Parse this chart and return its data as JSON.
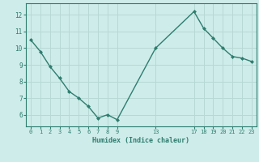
{
  "x": [
    0,
    1,
    2,
    3,
    4,
    5,
    6,
    7,
    8,
    9,
    13,
    17,
    18,
    19,
    20,
    21,
    22,
    23
  ],
  "y": [
    10.5,
    9.8,
    8.9,
    8.2,
    7.4,
    7.0,
    6.5,
    5.8,
    6.0,
    5.7,
    10.0,
    12.2,
    11.2,
    10.6,
    10.0,
    9.5,
    9.4,
    9.2
  ],
  "line_color": "#2e7d6e",
  "marker_color": "#2e7d6e",
  "bg_color": "#ceecea",
  "grid_color": "#b8d8d5",
  "axis_color": "#2e7d6e",
  "xlabel": "Humidex (Indice chaleur)",
  "xticks": [
    0,
    1,
    2,
    3,
    4,
    5,
    6,
    7,
    8,
    9,
    13,
    17,
    18,
    19,
    20,
    21,
    22,
    23
  ],
  "yticks": [
    6,
    7,
    8,
    9,
    10,
    11,
    12
  ],
  "ylim": [
    5.3,
    12.7
  ],
  "xlim": [
    -0.5,
    23.5
  ]
}
